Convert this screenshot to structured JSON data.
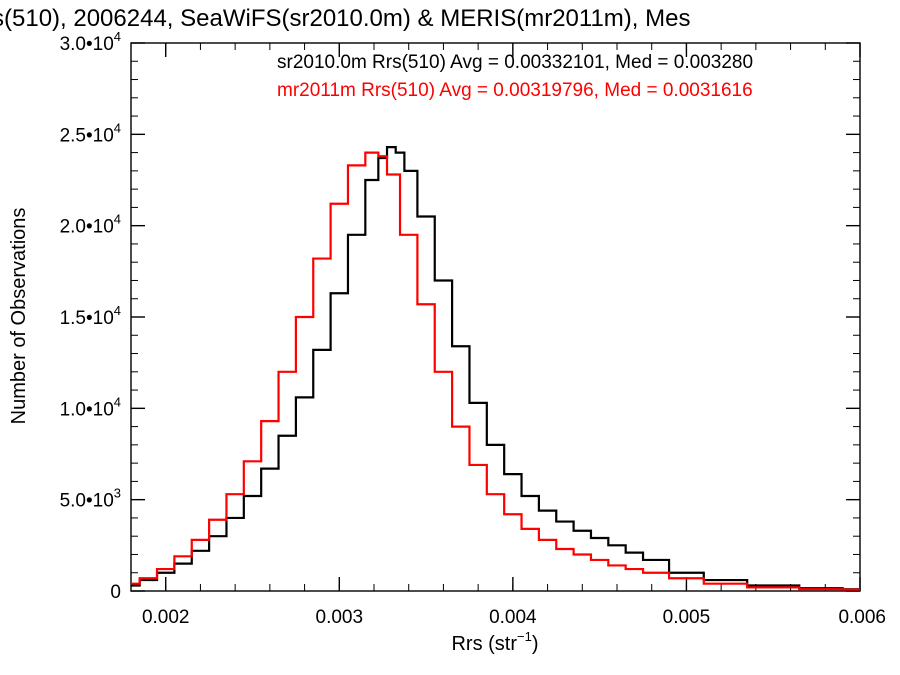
{
  "chart_data": {
    "type": "line",
    "title": "s(510), 2006244, SeaWiFS(sr2010.0m) & MERIS(mr2011m), Mes",
    "xlabel": "Rrs (str",
    "xlabel_sup": "−1",
    "xlabel_suffix": ")",
    "ylabel": "Number of Observations",
    "xlim": [
      0.0018,
      0.006
    ],
    "ylim": [
      0,
      30000
    ],
    "grid": false,
    "legend_position": "top-right",
    "x_ticks": [
      {
        "value": 0.002,
        "label": "0.002"
      },
      {
        "value": 0.003,
        "label": "0.003"
      },
      {
        "value": 0.004,
        "label": "0.004"
      },
      {
        "value": 0.005,
        "label": "0.005"
      },
      {
        "value": 0.006,
        "label": "0.006"
      }
    ],
    "y_ticks": [
      {
        "value": 0,
        "mant": "0",
        "exp": ""
      },
      {
        "value": 5000,
        "mant": "5.0•10",
        "exp": "3"
      },
      {
        "value": 10000,
        "mant": "1.0•10",
        "exp": "4"
      },
      {
        "value": 15000,
        "mant": "1.5•10",
        "exp": "4"
      },
      {
        "value": 20000,
        "mant": "2.0•10",
        "exp": "4"
      },
      {
        "value": 25000,
        "mant": "2.5•10",
        "exp": "4"
      },
      {
        "value": 30000,
        "mant": "3.0•10",
        "exp": "4"
      }
    ],
    "series": [
      {
        "name": "sr2010.0m",
        "color": "#000000",
        "annotation": "sr2010.0m Rrs(510) Avg = 0.00332101, Med = 0.003280",
        "x": [
          0.0018,
          0.0019,
          0.002,
          0.0021,
          0.0022,
          0.0023,
          0.0024,
          0.0025,
          0.0026,
          0.0027,
          0.0028,
          0.0029,
          0.003,
          0.0031,
          0.0032,
          0.00325,
          0.0033,
          0.00335,
          0.0034,
          0.0035,
          0.0036,
          0.0037,
          0.0038,
          0.0039,
          0.004,
          0.0041,
          0.0042,
          0.0043,
          0.0044,
          0.0045,
          0.0046,
          0.0047,
          0.0048,
          0.005,
          0.0052,
          0.0055,
          0.0058,
          0.006
        ],
        "y": [
          300,
          600,
          1000,
          1500,
          2200,
          3000,
          4000,
          5200,
          6700,
          8500,
          10600,
          13200,
          16300,
          19500,
          22500,
          23700,
          24300,
          24000,
          23000,
          20500,
          17000,
          13400,
          10300,
          8000,
          6400,
          5200,
          4400,
          3800,
          3300,
          2900,
          2500,
          2100,
          1700,
          1000,
          600,
          300,
          150,
          100
        ]
      },
      {
        "name": "mr2011m",
        "color": "#ff0000",
        "annotation": "mr2011m Rrs(510) Avg = 0.00319796, Med = 0.0031616",
        "x": [
          0.0018,
          0.0019,
          0.002,
          0.0021,
          0.0022,
          0.0023,
          0.0024,
          0.0025,
          0.0026,
          0.0027,
          0.0028,
          0.0029,
          0.003,
          0.0031,
          0.0032,
          0.00325,
          0.0033,
          0.0034,
          0.0035,
          0.0036,
          0.0037,
          0.0038,
          0.0039,
          0.004,
          0.0041,
          0.0042,
          0.0043,
          0.0044,
          0.0045,
          0.0046,
          0.0047,
          0.0048,
          0.005,
          0.0052,
          0.0055,
          0.0058,
          0.006
        ],
        "y": [
          400,
          700,
          1200,
          1900,
          2800,
          3900,
          5300,
          7100,
          9300,
          12000,
          15000,
          18200,
          21200,
          23300,
          24000,
          23800,
          22800,
          19500,
          15700,
          12000,
          9000,
          6900,
          5300,
          4200,
          3400,
          2800,
          2300,
          2000,
          1700,
          1400,
          1200,
          1000,
          700,
          400,
          200,
          100,
          80
        ]
      }
    ]
  }
}
